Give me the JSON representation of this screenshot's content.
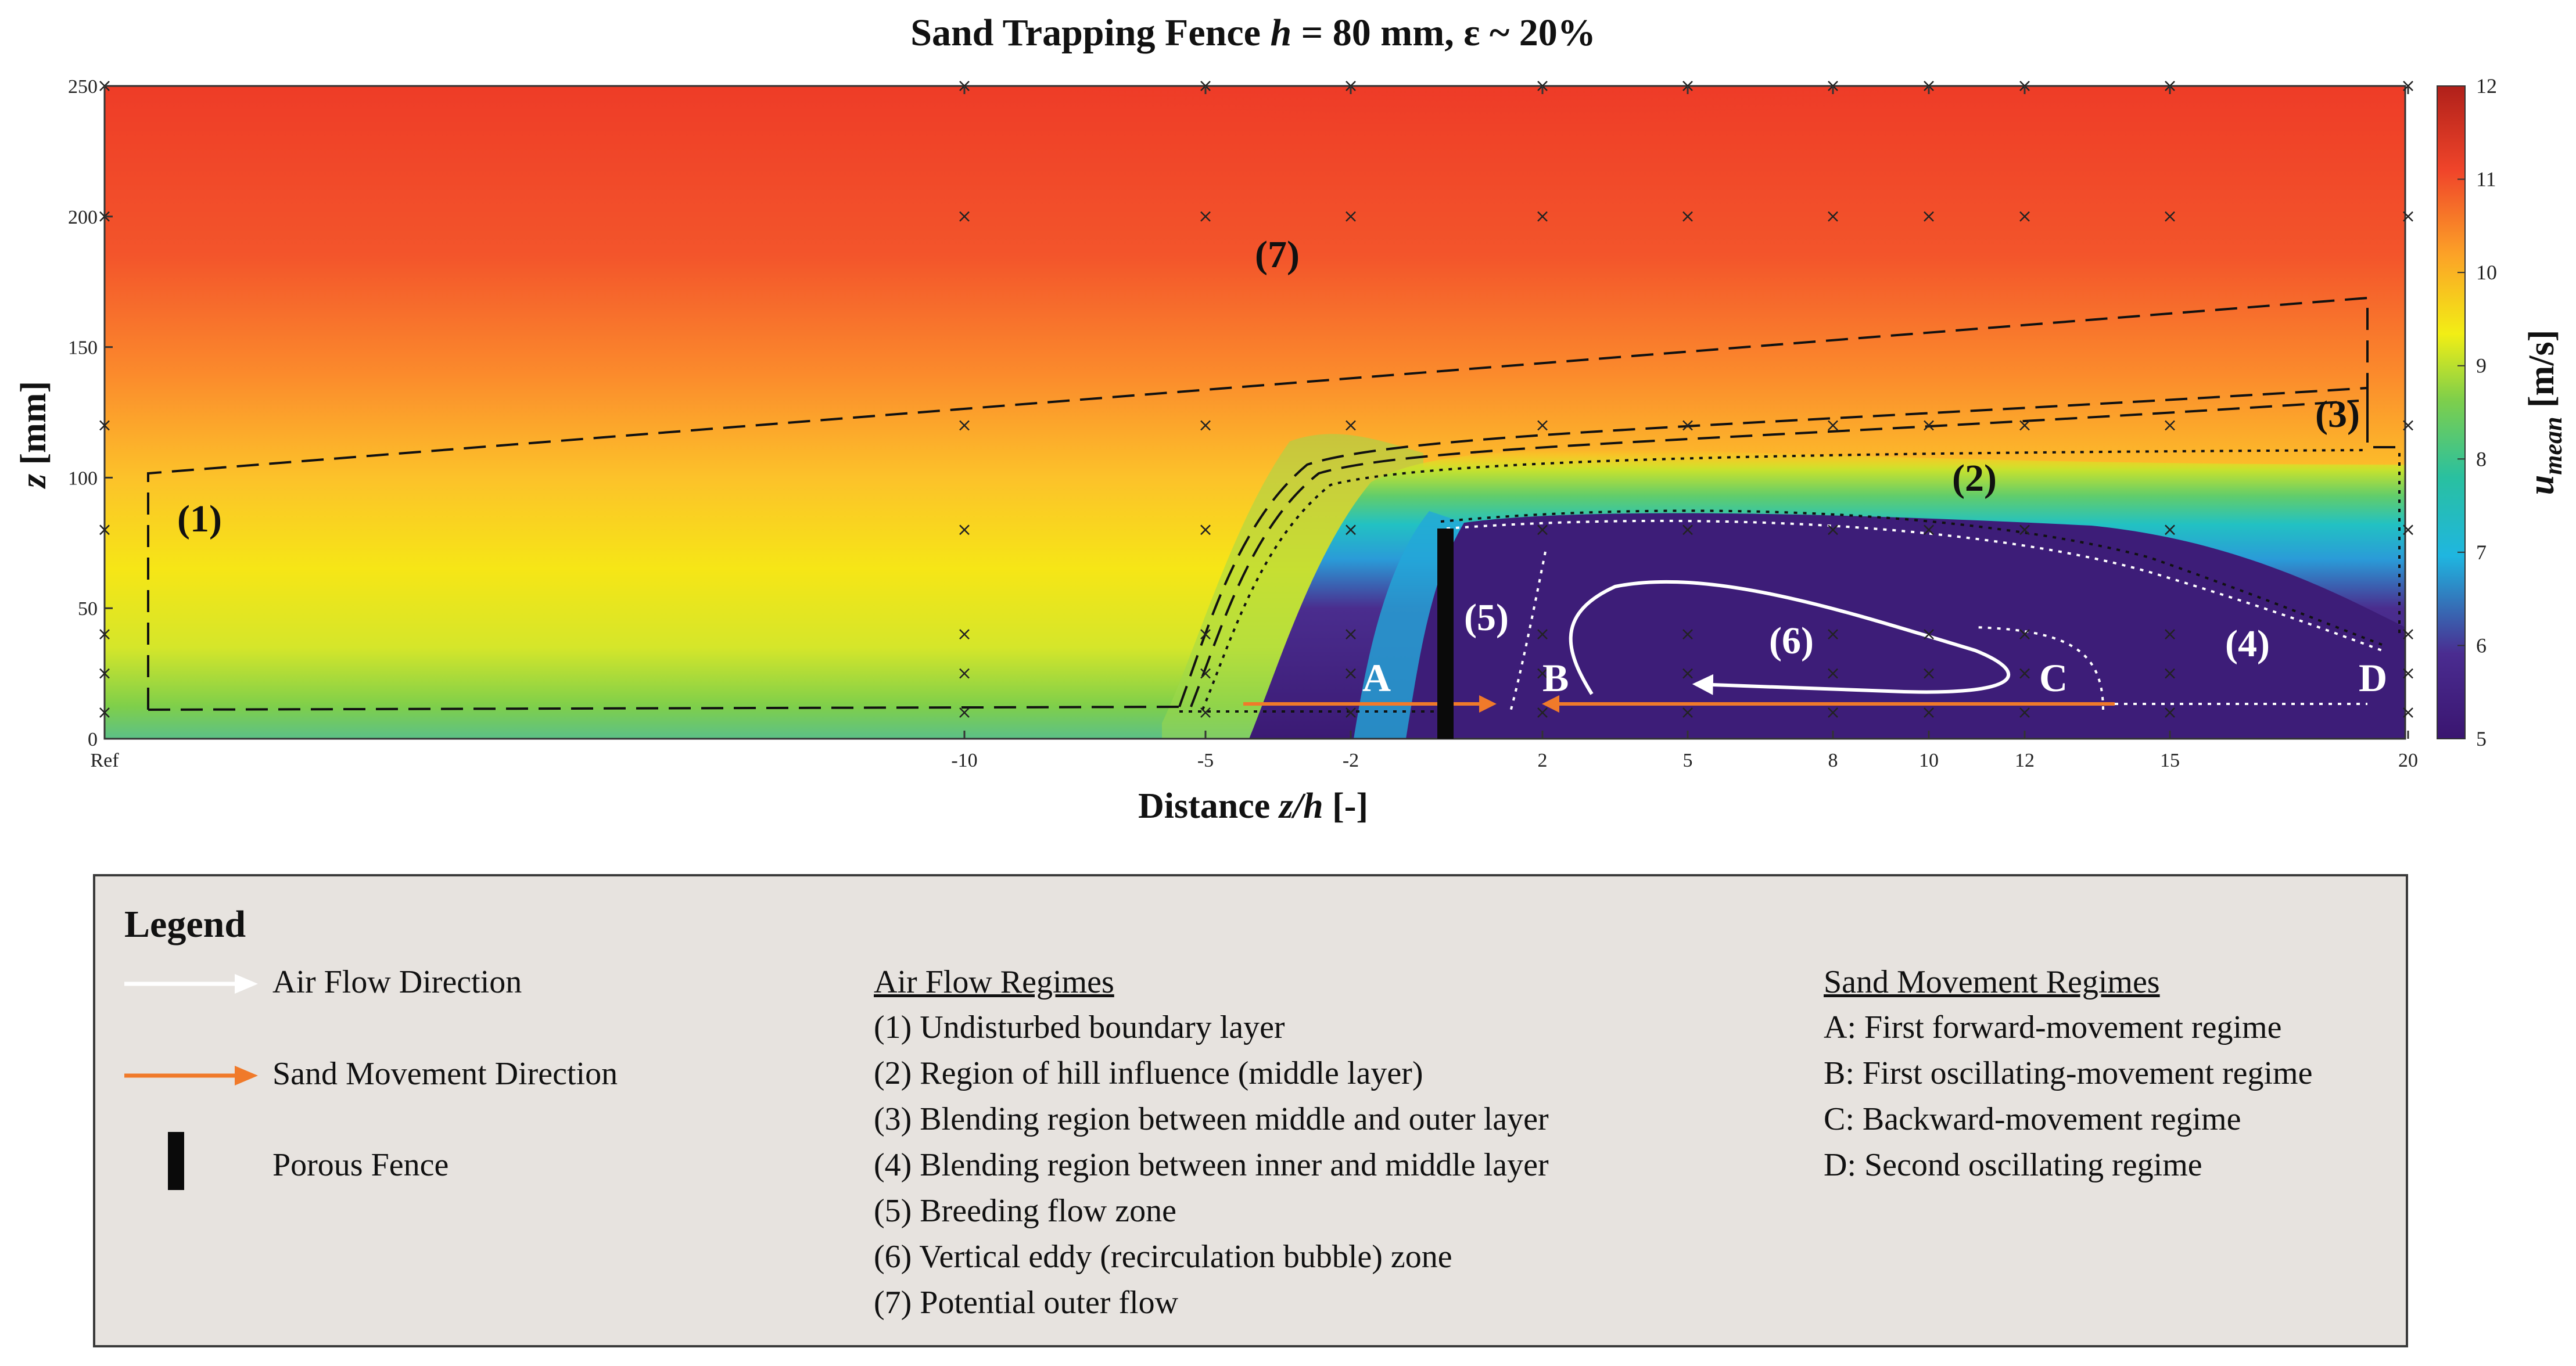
{
  "chart_data": {
    "type": "heatmap",
    "title": "Sand Trapping Fence h = 80 mm, ε ~ 20%",
    "title_parts": [
      "Sand Trapping Fence ",
      "h",
      " = 80 mm, ε ~ 20%"
    ],
    "xlabel_parts": [
      "Distance ",
      "z/h",
      " [-]"
    ],
    "ylabel_parts": [
      "z",
      " [mm]"
    ],
    "colorbar_label_parts": [
      "u",
      "mean",
      " [m/s]"
    ],
    "x_tick_labels": [
      "Ref",
      "-10",
      "-5",
      "-2",
      "2",
      "5",
      "8",
      "10",
      "12",
      "15",
      "20"
    ],
    "x_tick_values": [
      -21,
      -10,
      -5,
      -2,
      2,
      5,
      8,
      10,
      12,
      15,
      20
    ],
    "xlim": [
      -21,
      20.5
    ],
    "y_ticks": [
      0,
      50,
      100,
      150,
      200,
      250
    ],
    "ylim": [
      0,
      250
    ],
    "colorbar_ticks": [
      5,
      6,
      7,
      8,
      9,
      10,
      11,
      12
    ],
    "colorbar_range": [
      5,
      12
    ],
    "colormap": [
      "#3a1570",
      "#4a2c90",
      "#1fb6e0",
      "#29c0a0",
      "#7fcf4a",
      "#f2ee15",
      "#fca327",
      "#f0452a",
      "#b0201a"
    ],
    "fence": {
      "x": 0,
      "height_mm": 80
    },
    "measurement_stations_x": [
      -21,
      -10,
      -5,
      -2,
      2,
      5,
      8,
      10,
      12,
      15,
      20
    ],
    "regime_labels": [
      "(1)",
      "(2)",
      "(3)",
      "(4)",
      "(5)",
      "(6)",
      "(7)"
    ],
    "sand_labels": [
      "A",
      "B",
      "C",
      "D"
    ]
  },
  "legend": {
    "title": "Legend",
    "air_flow_direction": "Air Flow Direction",
    "sand_movement_direction": "Sand Movement Direction",
    "porous_fence": "Porous Fence",
    "air_flow_heading": "Air Flow Regimes",
    "air_flow_regimes": [
      "(1) Undisturbed boundary layer",
      "(2) Region of hill influence (middle layer)",
      "(3) Blending region between middle and outer layer",
      "(4) Blending region between inner and middle layer",
      "(5) Breeding flow zone",
      "(6) Vertical eddy (recirculation bubble) zone",
      "(7) Potential outer flow"
    ],
    "sand_heading": "Sand Movement Regimes",
    "sand_regimes": [
      "A: First forward-movement regime",
      "B: First oscillating-movement regime",
      "C: Backward-movement regime",
      "D: Second oscillating regime"
    ]
  },
  "colors": {
    "air_arrow": "#ffffff",
    "sand_arrow": "#f07a2a",
    "fence": "#0a0a0a",
    "legend_bg": "#e7e3df"
  }
}
